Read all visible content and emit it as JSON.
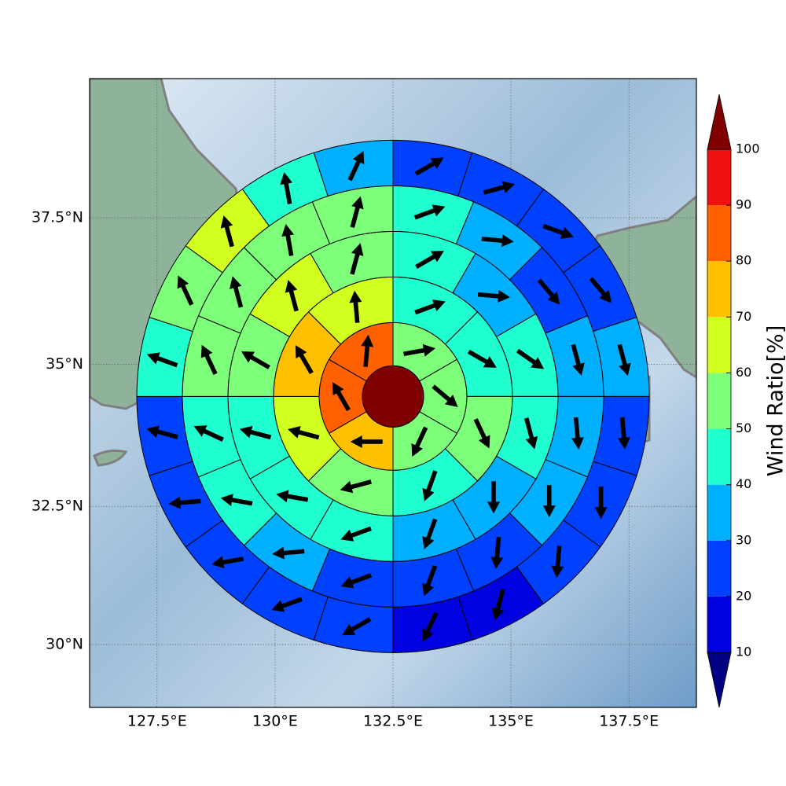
{
  "chart_data": {
    "type": "polar-sector-map",
    "projection": "mercator",
    "xlim": [
      126.07,
      138.93
    ],
    "ylim": [
      28.84,
      39.8
    ],
    "xticks": [
      {
        "value": 127.5,
        "label": "127.5°E"
      },
      {
        "value": 130,
        "label": "130°E"
      },
      {
        "value": 132.5,
        "label": "132.5°E"
      },
      {
        "value": 135,
        "label": "135°E"
      },
      {
        "value": 137.5,
        "label": "137.5°E"
      }
    ],
    "yticks": [
      {
        "value": 30,
        "label": "30°N"
      },
      {
        "value": 32.5,
        "label": "32.5°N"
      },
      {
        "value": 35,
        "label": "35°N"
      },
      {
        "value": 37.5,
        "label": "37.5°N"
      }
    ],
    "grid": true,
    "center": [
      132.5,
      34.44
    ],
    "center_value": 105,
    "rings": [
      {
        "values": [
          55,
          55,
          55,
          75,
          85,
          85
        ],
        "directions": [
          80,
          130,
          205,
          270,
          330,
          5
        ]
      },
      {
        "values": [
          45,
          45,
          55,
          45,
          55,
          65,
          75,
          65
        ],
        "directions": [
          70,
          120,
          155,
          200,
          255,
          285,
          330,
          355
        ]
      },
      {
        "values": [
          45,
          35,
          45,
          45,
          35,
          35,
          45,
          45,
          45,
          55,
          65,
          55
        ],
        "directions": [
          60,
          95,
          125,
          165,
          180,
          200,
          250,
          280,
          285,
          300,
          345,
          15
        ]
      },
      {
        "values": [
          45,
          35,
          25,
          35,
          35,
          35,
          25,
          25,
          25,
          35,
          45,
          45,
          55,
          55,
          55,
          55
        ],
        "directions": [
          70,
          95,
          140,
          165,
          175,
          180,
          185,
          200,
          250,
          265,
          280,
          295,
          335,
          345,
          350,
          15
        ]
      },
      {
        "values": [
          25,
          25,
          25,
          25,
          35,
          25,
          25,
          25,
          15,
          15,
          25,
          25,
          25,
          25,
          25,
          45,
          55,
          65,
          45,
          35
        ],
        "directions": [
          60,
          75,
          110,
          140,
          165,
          175,
          180,
          185,
          195,
          205,
          240,
          250,
          260,
          265,
          285,
          290,
          335,
          345,
          350,
          25
        ]
      }
    ],
    "arrow_color": "#000000",
    "colorbar": {
      "label": "Wind Ratio[%]",
      "levels": [
        10,
        20,
        30,
        40,
        50,
        60,
        70,
        80,
        90,
        100
      ],
      "colors": [
        "#0000e0",
        "#0040ff",
        "#00b0ff",
        "#20ffd0",
        "#7dff7a",
        "#d0ff20",
        "#ffc000",
        "#ff6000",
        "#f01010"
      ],
      "under_color": "#000080",
      "over_color": "#800000"
    }
  }
}
